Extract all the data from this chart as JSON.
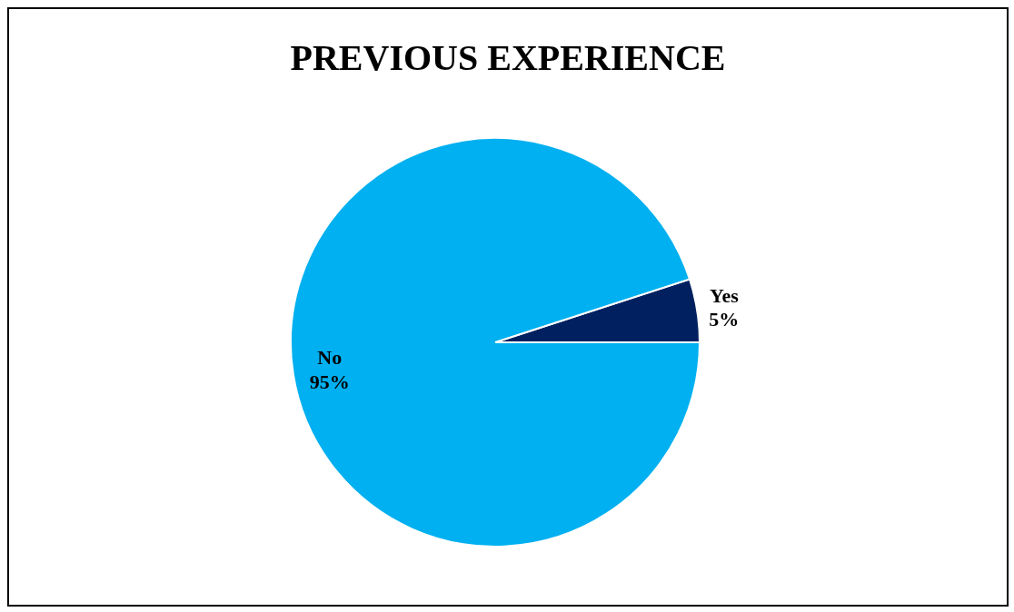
{
  "chart_data": {
    "type": "pie",
    "title": "PREVIOUS EXPERIENCE",
    "categories": [
      "Yes",
      "No"
    ],
    "values": [
      5,
      95
    ],
    "colors": [
      "#002060",
      "#00b0f0"
    ],
    "value_labels": [
      "5%",
      "95%"
    ]
  }
}
